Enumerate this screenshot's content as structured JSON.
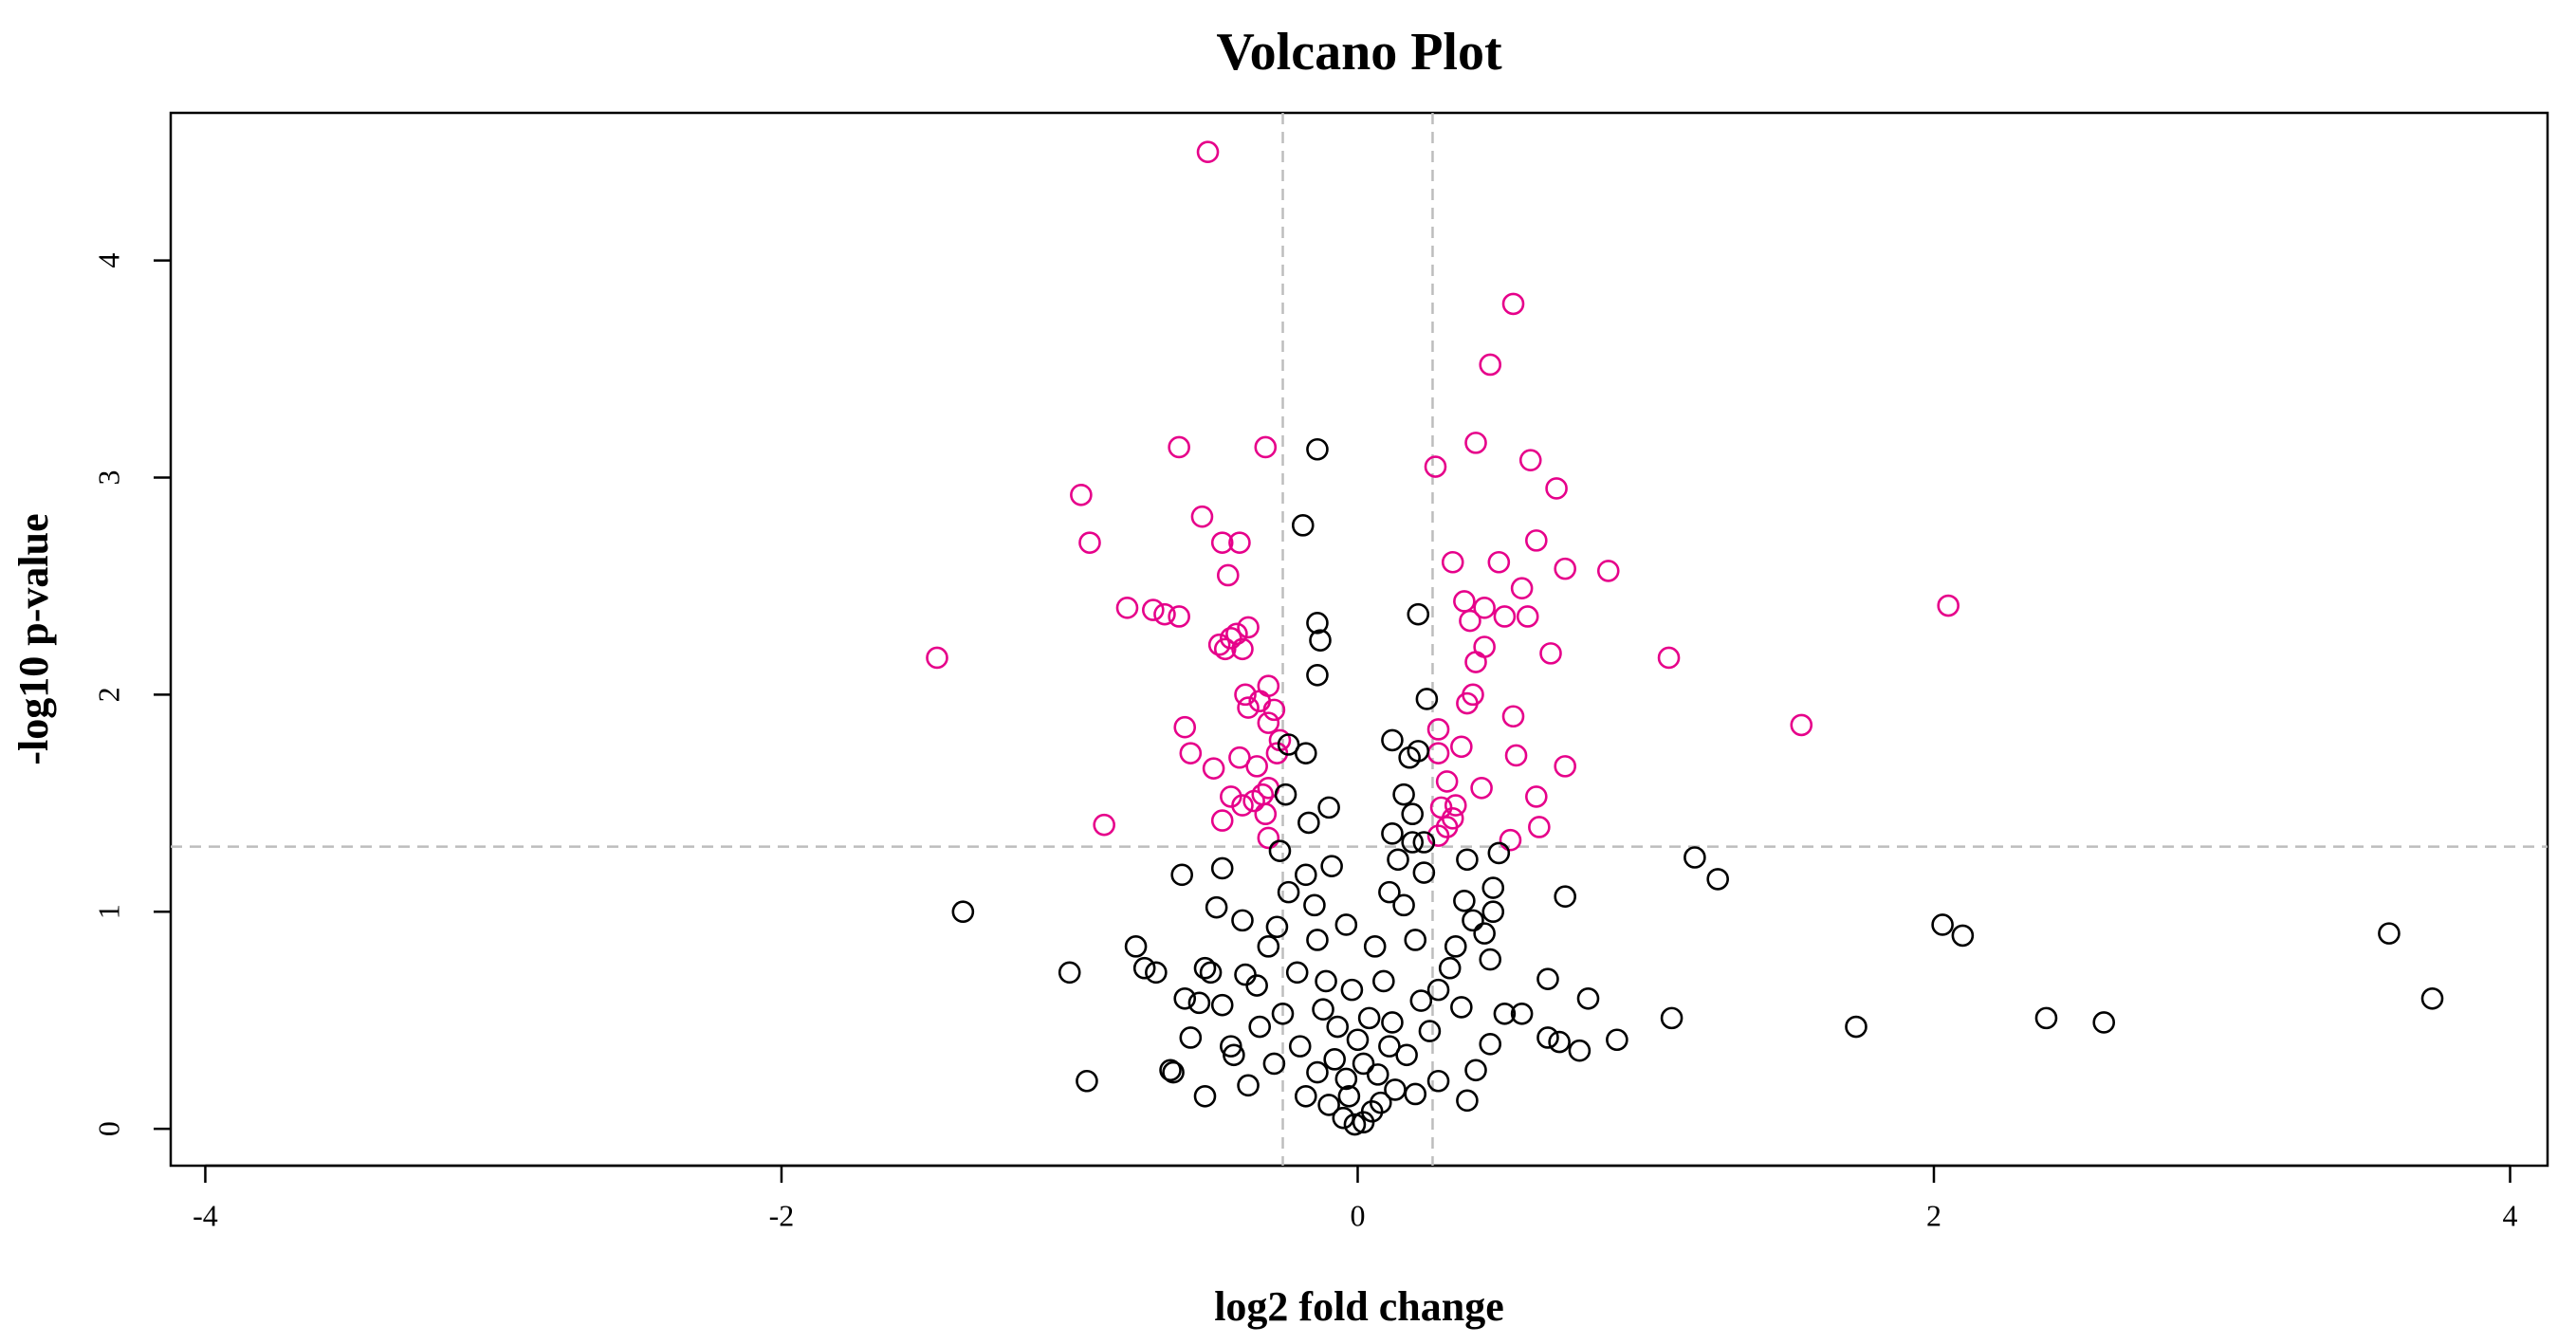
{
  "chart_data": {
    "type": "scatter",
    "title": "Volcano Plot",
    "x_label": "log2 fold change",
    "y_label": "-log10 p-value",
    "xlim": [
      -4.12,
      4.13
    ],
    "ylim": [
      -0.17,
      4.68
    ],
    "xticks": [
      -4,
      -2,
      0,
      2,
      4
    ],
    "yticks": [
      0,
      1,
      2,
      3,
      4
    ],
    "vlines": [
      -0.26,
      0.26
    ],
    "hline": 1.3,
    "reference_line_color": "#bdbdbd",
    "series": [
      {
        "color": "#e6008a",
        "x": [
          -0.52,
          0.54,
          0.46,
          -0.62,
          -0.32,
          0.41,
          0.27,
          0.6,
          0.69,
          -0.96,
          -0.54,
          0.62,
          -0.93,
          -0.47,
          -0.41,
          0.33,
          0.49,
          0.72,
          0.87,
          -0.45,
          0.57,
          2.05,
          -0.8,
          -0.71,
          -0.67,
          -0.62,
          0.37,
          0.44,
          0.39,
          0.51,
          0.59,
          -0.38,
          -0.42,
          -0.44,
          -0.48,
          -0.46,
          -0.4,
          0.44,
          -1.46,
          1.08,
          0.67,
          0.41,
          -0.31,
          -0.39,
          0.4,
          -0.34,
          -0.38,
          -0.29,
          0.38,
          -0.31,
          1.54,
          -0.6,
          0.28,
          0.54,
          -0.27,
          0.36,
          -0.58,
          -0.28,
          -0.41,
          0.28,
          0.55,
          0.72,
          -0.5,
          -0.35,
          0.31,
          0.43,
          -0.31,
          -0.33,
          -0.44,
          -0.4,
          -0.36,
          0.62,
          0.29,
          0.34,
          0.33,
          0.31,
          -0.88,
          -0.47,
          -0.32,
          0.63,
          0.28,
          0.53,
          -0.31
        ],
        "values": [
          4.5,
          3.8,
          3.52,
          3.14,
          3.14,
          3.16,
          3.05,
          3.08,
          2.95,
          2.92,
          2.82,
          2.71,
          2.7,
          2.7,
          2.7,
          2.61,
          2.61,
          2.58,
          2.57,
          2.55,
          2.49,
          2.41,
          2.4,
          2.39,
          2.37,
          2.36,
          2.43,
          2.4,
          2.34,
          2.36,
          2.36,
          2.31,
          2.28,
          2.26,
          2.23,
          2.21,
          2.21,
          2.22,
          2.17,
          2.17,
          2.19,
          2.15,
          2.04,
          2.0,
          2.0,
          1.97,
          1.94,
          1.93,
          1.96,
          1.87,
          1.86,
          1.85,
          1.84,
          1.9,
          1.79,
          1.76,
          1.73,
          1.73,
          1.71,
          1.73,
          1.72,
          1.67,
          1.66,
          1.67,
          1.6,
          1.57,
          1.57,
          1.54,
          1.53,
          1.49,
          1.51,
          1.53,
          1.48,
          1.49,
          1.43,
          1.39,
          1.4,
          1.42,
          1.45,
          1.39,
          1.35,
          1.33,
          1.34
        ]
      },
      {
        "color": "#000000",
        "x": [
          -1.37,
          -1.0,
          -0.94,
          -0.77,
          -0.74,
          -0.7,
          1.17,
          1.25,
          2.03,
          2.1,
          1.73,
          2.39,
          2.59,
          3.58,
          3.73,
          1.09,
          0.9,
          0.8,
          0.72,
          0.66,
          0.77,
          0.7,
          0.66,
          -0.14,
          -0.19,
          -0.14,
          -0.13,
          -0.14,
          0.21,
          0.24,
          0.12,
          0.21,
          0.18,
          -0.1,
          -0.24,
          -0.18,
          -0.25,
          0.16,
          0.19,
          0.12,
          0.19,
          0.23,
          0.38,
          0.49,
          -0.61,
          -0.47,
          -0.49,
          -0.4,
          -0.31,
          -0.35,
          -0.53,
          -0.51,
          -0.6,
          -0.55,
          -0.47,
          -0.64,
          -0.65,
          -0.53,
          -0.38,
          -0.58,
          -0.44,
          -0.29,
          -0.18,
          -0.1,
          -0.05,
          -0.01,
          0.02,
          0.05,
          0.08,
          0.13,
          0.2,
          0.28,
          0.38,
          0.41,
          0.46,
          0.51,
          0.57,
          0.46,
          0.44,
          0.47,
          0.47,
          0.37,
          0.4,
          0.34,
          0.32,
          0.36,
          0.25,
          0.17,
          0.12,
          0.09,
          0.06,
          0.11,
          0.16,
          0.2,
          -0.07,
          -0.11,
          -0.14,
          -0.15,
          -0.18,
          -0.17,
          -0.27,
          -0.24,
          -0.28,
          -0.21,
          -0.26,
          -0.2,
          -0.34,
          -0.14,
          -0.04,
          -0.03,
          -0.08,
          0.02,
          0.07,
          0.11,
          0.22,
          0.28,
          -0.39,
          -0.43,
          -0.12,
          -0.02,
          0.04,
          0.0,
          -0.09,
          0.14,
          0.23,
          -0.04
        ],
        "values": [
          1.0,
          0.72,
          0.22,
          0.84,
          0.74,
          0.72,
          1.25,
          1.15,
          0.94,
          0.89,
          0.47,
          0.51,
          0.49,
          0.9,
          0.6,
          0.51,
          0.41,
          0.6,
          1.07,
          0.69,
          0.36,
          0.4,
          0.42,
          3.13,
          2.78,
          2.33,
          2.25,
          2.09,
          2.37,
          1.98,
          1.79,
          1.74,
          1.71,
          1.48,
          1.77,
          1.73,
          1.54,
          1.54,
          1.45,
          1.36,
          1.32,
          1.18,
          1.24,
          1.27,
          1.17,
          1.2,
          1.02,
          0.96,
          0.84,
          0.66,
          0.74,
          0.72,
          0.6,
          0.58,
          0.57,
          0.26,
          0.27,
          0.15,
          0.2,
          0.42,
          0.38,
          0.3,
          0.15,
          0.11,
          0.05,
          0.02,
          0.03,
          0.08,
          0.12,
          0.18,
          0.16,
          0.22,
          0.13,
          0.27,
          0.39,
          0.53,
          0.53,
          0.78,
          0.9,
          1.0,
          1.11,
          1.05,
          0.96,
          0.84,
          0.74,
          0.56,
          0.45,
          0.34,
          0.49,
          0.68,
          0.84,
          1.09,
          1.03,
          0.87,
          0.47,
          0.68,
          0.87,
          1.03,
          1.17,
          1.41,
          1.28,
          1.09,
          0.93,
          0.72,
          0.53,
          0.38,
          0.47,
          0.26,
          0.23,
          0.15,
          0.32,
          0.3,
          0.25,
          0.38,
          0.59,
          0.64,
          0.71,
          0.34,
          0.55,
          0.64,
          0.51,
          0.41,
          1.21,
          1.24,
          1.32,
          0.94
        ]
      }
    ]
  }
}
